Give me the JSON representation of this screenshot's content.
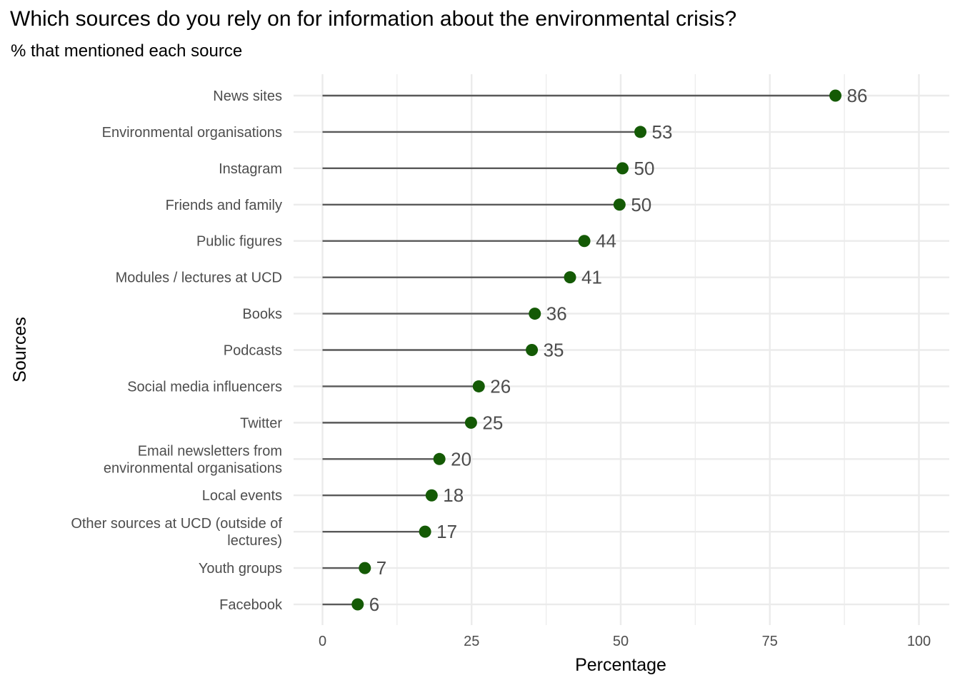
{
  "chart_data": {
    "type": "lollipop",
    "title": "Which sources do you rely on for information about the environmental crisis?",
    "subtitle": "% that mentioned each source",
    "xlabel": "Percentage",
    "ylabel": "Sources",
    "xlim": [
      0,
      100
    ],
    "x_ticks": [
      "0",
      "25",
      "50",
      "75",
      "100"
    ],
    "grid": true,
    "categories": [
      "News sites",
      "Environmental organisations",
      "Instagram",
      "Friends and family",
      "Public figures",
      "Modules / lectures at UCD",
      "Books",
      "Podcasts",
      "Social media influencers",
      "Twitter",
      "Email newsletters from\nenvironmental organisations",
      "Local events",
      "Other sources at UCD (outside of\nlectures)",
      "Youth groups",
      "Facebook"
    ],
    "values": [
      86,
      53.3,
      50.3,
      49.8,
      43.9,
      41.5,
      35.6,
      35.1,
      26.2,
      24.9,
      19.6,
      18.3,
      17.2,
      7.1,
      5.9
    ],
    "data_labels": [
      "86",
      "53",
      "50",
      "50",
      "44",
      "41",
      "36",
      "35",
      "26",
      "25",
      "20",
      "18",
      "17",
      "7",
      "6"
    ],
    "colors": {
      "point": "#145a05",
      "stem": "#595959",
      "grid": "#ebebeb",
      "label": "#4d4d4d"
    }
  }
}
